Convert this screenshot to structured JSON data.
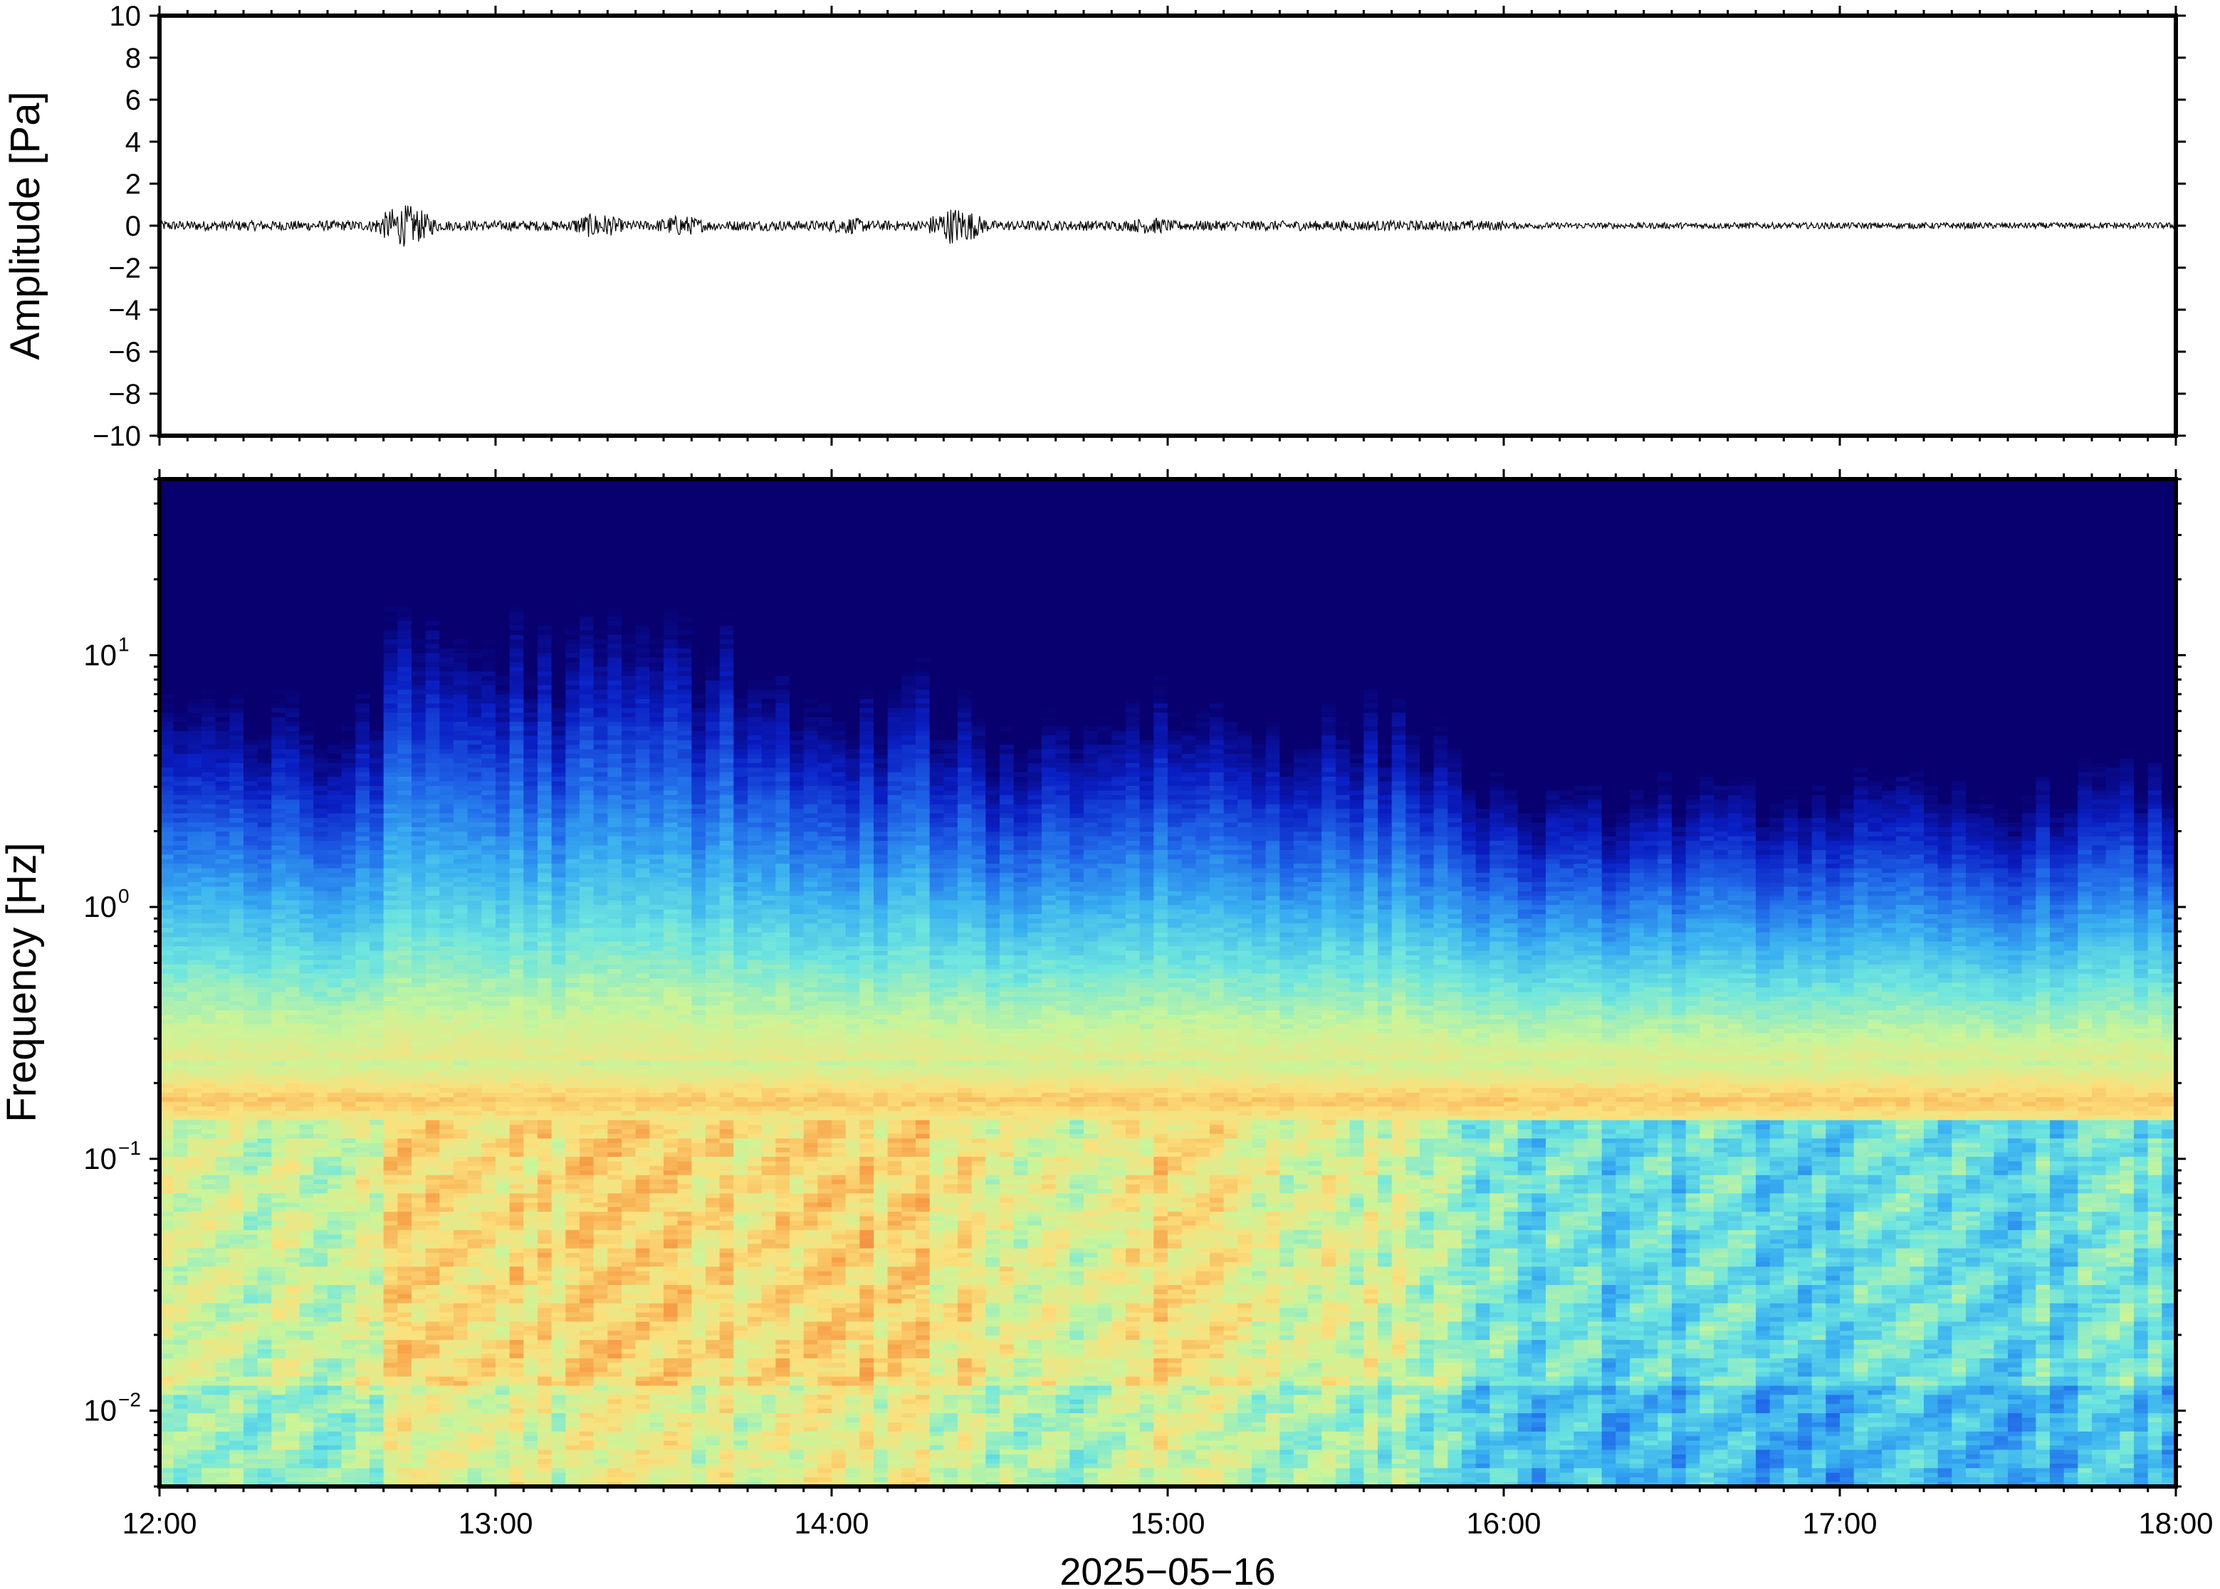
{
  "chart_data": [
    {
      "type": "line",
      "panel": "waveform",
      "ylabel": "Amplitude [Pa]",
      "ylim": [
        -10,
        10
      ],
      "yticks": [
        10,
        8,
        6,
        4,
        2,
        0,
        -2,
        -4,
        -6,
        -8,
        -10
      ],
      "yticklabels": [
        "10",
        "8",
        "6",
        "4",
        "2",
        "0",
        "−2",
        "−4",
        "−6",
        "−8",
        "−10"
      ],
      "xlim_hours": [
        12,
        18
      ],
      "baseline": 0,
      "typical_peak_amplitude": 0.3,
      "max_amplitude": 1.0,
      "bursts": [
        {
          "time_hours": 12.73,
          "amplitude": 1.0
        },
        {
          "time_hours": 13.3,
          "amplitude": 0.6
        },
        {
          "time_hours": 13.55,
          "amplitude": 0.5
        },
        {
          "time_hours": 14.05,
          "amplitude": 0.4
        },
        {
          "time_hours": 14.37,
          "amplitude": 0.9
        },
        {
          "time_hours": 14.95,
          "amplitude": 0.4
        }
      ]
    },
    {
      "type": "heatmap",
      "panel": "spectrogram",
      "ylabel": "Frequency [Hz]",
      "yscale": "log",
      "ylim": [
        0.005,
        50
      ],
      "yticks": [
        0.01,
        0.1,
        1,
        10
      ],
      "yticklabels": [
        {
          "base": "10",
          "exp": "−2"
        },
        {
          "base": "10",
          "exp": "−1"
        },
        {
          "base": "10",
          "exp": "0"
        },
        {
          "base": "10",
          "exp": "1"
        }
      ],
      "xlim_hours": [
        12,
        18
      ],
      "colormap": [
        "#08006e",
        "#0a1fc4",
        "#1f66e8",
        "#3ab1f0",
        "#6fe6de",
        "#c9f59a",
        "#fbe07c",
        "#f7a148",
        "#e85a3c"
      ],
      "microseism_band_hz": [
        0.14,
        0.25
      ],
      "microseism_peak_hz": 0.17,
      "time_hours": [
        12.0,
        12.25,
        12.5,
        12.75,
        13.0,
        13.25,
        13.5,
        13.75,
        14.0,
        14.25,
        14.5,
        14.75,
        15.0,
        15.25,
        15.5,
        15.75,
        16.0,
        16.25,
        16.5,
        16.75,
        17.0,
        17.25,
        17.5,
        17.75
      ],
      "high_freq_energy": [
        0.7,
        0.62,
        0.5,
        0.85,
        0.8,
        0.78,
        0.82,
        0.76,
        0.55,
        0.68,
        0.5,
        0.6,
        0.65,
        0.58,
        0.55,
        0.58,
        0.25,
        0.22,
        0.28,
        0.25,
        0.3,
        0.28,
        0.22,
        0.35
      ],
      "low_freq_energy": [
        0.7,
        0.6,
        0.55,
        0.85,
        0.8,
        0.82,
        0.85,
        0.8,
        0.85,
        0.82,
        0.7,
        0.65,
        0.85,
        0.72,
        0.65,
        0.6,
        0.35,
        0.3,
        0.32,
        0.3,
        0.28,
        0.32,
        0.3,
        0.35
      ]
    }
  ],
  "axes": {
    "xticks_hours": [
      12,
      13,
      14,
      15,
      16,
      17,
      18
    ],
    "xticklabels": [
      "12:00",
      "13:00",
      "14:00",
      "15:00",
      "16:00",
      "17:00",
      "18:00"
    ],
    "xlabel": "2025−05−16"
  }
}
